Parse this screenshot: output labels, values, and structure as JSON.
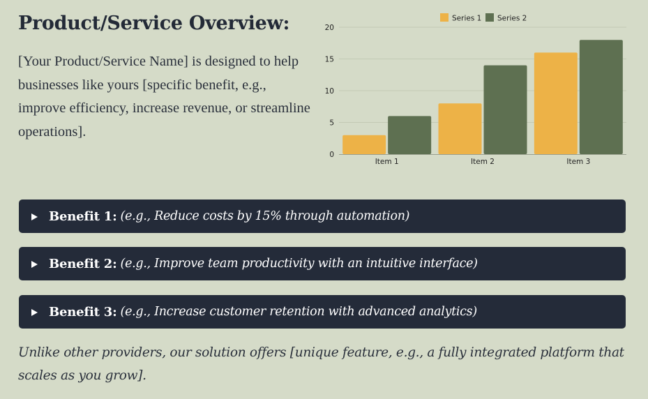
{
  "page": {
    "title": "Product/Service Overview:",
    "intro": "[Your Product/Service Name] is designed to help businesses like yours [specific benefit, e.g., improve efficiency, increase revenue, or streamline operations].",
    "closing": "Unlike other providers, our solution offers [unique feature, e.g., a fully integrated platform that scales as you grow]."
  },
  "benefits": [
    {
      "label": "Benefit 1:",
      "text": "(e.g., Reduce costs by 15% through automation)"
    },
    {
      "label": "Benefit 2:",
      "text": "(e.g., Improve team productivity with an intuitive interface)"
    },
    {
      "label": "Benefit 3:",
      "text": "(e.g., Increase customer retention with advanced analytics)"
    }
  ],
  "chart_data": {
    "type": "bar",
    "categories": [
      "Item 1",
      "Item 2",
      "Item 3"
    ],
    "series": [
      {
        "name": "Series 1",
        "values": [
          3,
          8,
          16
        ],
        "color": "#edb247"
      },
      {
        "name": "Series 2",
        "values": [
          6,
          14,
          18
        ],
        "color": "#5e7051"
      }
    ],
    "ylim": [
      0,
      20
    ],
    "yticks": [
      0,
      5,
      10,
      15,
      20
    ],
    "grid": true,
    "legend": "top-center"
  },
  "colors": {
    "background": "#d5dbc8",
    "panel": "#242b39",
    "text": "#232a37"
  }
}
